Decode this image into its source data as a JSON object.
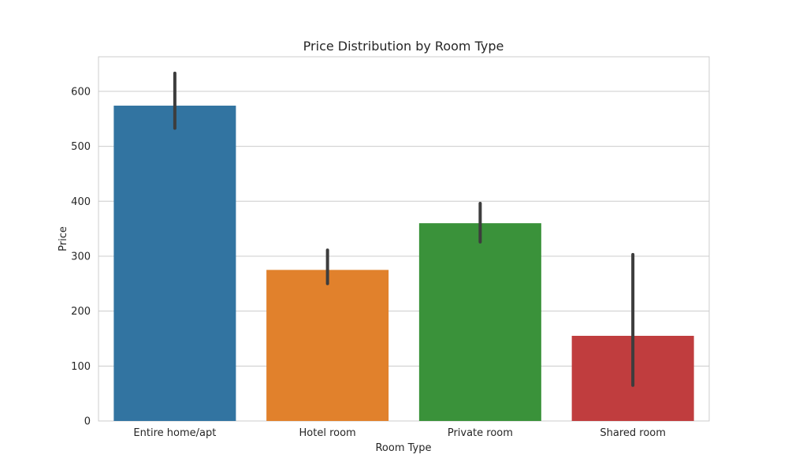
{
  "chart_data": {
    "type": "bar",
    "title": "Price Distribution by Room Type",
    "xlabel": "Room Type",
    "ylabel": "Price",
    "categories": [
      "Entire home/apt",
      "Hotel room",
      "Private room",
      "Shared room"
    ],
    "values": [
      574,
      275,
      360,
      155
    ],
    "error_low": [
      533,
      250,
      326,
      65
    ],
    "error_high": [
      633,
      311,
      396,
      303
    ],
    "ylim": [
      0,
      663
    ],
    "yticks": [
      0,
      100,
      200,
      300,
      400,
      500,
      600
    ],
    "grid": true,
    "colors": [
      "#3274a1",
      "#e1812c",
      "#3a923a",
      "#c03d3e"
    ],
    "error_color": "#3d3d3d"
  }
}
